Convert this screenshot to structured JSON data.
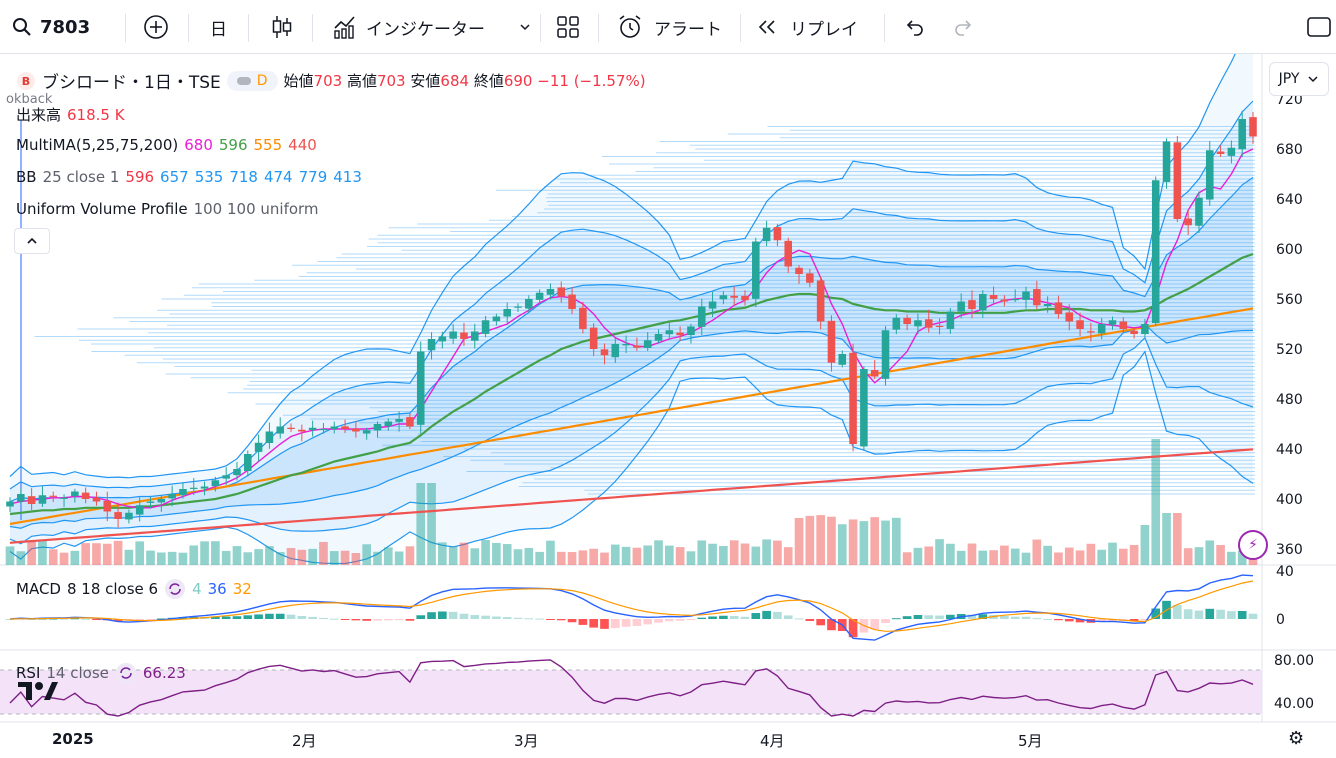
{
  "toolbar": {
    "symbol": "7803",
    "interval": "日",
    "indicators_label": "インジケーター",
    "alert_label": "アラート",
    "replay_label": "リプレイ"
  },
  "header": {
    "title": "ブシロード・1日・TSE",
    "badge": "D",
    "open_label": "始値",
    "open": "703",
    "high_label": "高値",
    "high": "703",
    "low_label": "安値",
    "low": "684",
    "close_label": "終値",
    "close": "690",
    "change": "−11 (−1.57%)",
    "currency": "JPY",
    "overlay_text": "okback"
  },
  "legends": {
    "volume_name": "出来高",
    "volume_value": "618.5 K",
    "ma_name": "MultiMA",
    "ma_params": "(5,25,75,200)",
    "ma_values": [
      "680",
      "596",
      "555",
      "440"
    ],
    "bb_name": "BB",
    "bb_params": "25 close 1",
    "bb_values": [
      "596",
      "657",
      "535",
      "718",
      "474",
      "779",
      "413"
    ],
    "vp_name": "Uniform Volume Profile",
    "vp_params": "100 100 uniform",
    "macd_name": "MACD",
    "macd_params": "8 18 close 6",
    "macd_values": [
      "4",
      "36",
      "32"
    ],
    "rsi_name": "RSI",
    "rsi_params": "14 close",
    "rsi_value": "66.23"
  },
  "axes": {
    "price_ticks": [
      "720",
      "680",
      "640",
      "600",
      "560",
      "520",
      "480",
      "440",
      "400",
      "360"
    ],
    "macd_ticks": [
      "40",
      "0"
    ],
    "rsi_ticks": [
      "80.00",
      "40.00"
    ],
    "time_labels": [
      "2025",
      "2月",
      "3月",
      "4月",
      "5月"
    ]
  },
  "colors": {
    "up": "#26a69a",
    "down": "#ef5350",
    "ma5": "#e91ed6",
    "ma25": "#43a047",
    "ma75": "#fb8c00",
    "ma200": "#ef5350",
    "bb": "#2196f3",
    "macd": "#2962ff",
    "signal": "#ff9800",
    "rsi": "#7e1f86"
  },
  "chart_data": {
    "type": "candlestick",
    "closes": [
      398,
      404,
      396,
      403,
      402,
      401,
      406,
      400,
      398,
      390,
      384,
      389,
      395,
      398,
      400,
      404,
      408,
      409,
      410,
      415,
      419,
      424,
      436,
      445,
      454,
      458,
      456,
      454,
      457,
      456,
      458,
      456,
      454,
      455,
      460,
      462,
      464,
      458,
      518,
      528,
      530,
      534,
      528,
      534,
      543,
      546,
      552,
      554,
      560,
      565,
      568,
      562,
      552,
      536,
      520,
      515,
      524,
      524,
      521,
      527,
      532,
      535,
      531,
      538,
      554,
      558,
      563,
      561,
      559,
      606,
      617,
      607,
      586,
      580,
      573,
      542,
      509,
      516,
      444,
      504,
      498,
      535,
      545,
      540,
      543,
      537,
      538,
      550,
      558,
      552,
      564,
      560,
      558,
      560,
      566,
      555,
      556,
      548,
      542,
      536,
      534,
      540,
      543,
      536,
      532,
      540,
      655,
      686,
      624,
      619,
      641,
      679,
      676,
      681,
      704,
      690
    ],
    "ma5": [
      396,
      398,
      399,
      400,
      401,
      401,
      402,
      402,
      401,
      399,
      396,
      394,
      393,
      393,
      395,
      399,
      402,
      405,
      407,
      410,
      413,
      417,
      423,
      430,
      437,
      444,
      450,
      453,
      455,
      456,
      456,
      456,
      456,
      456,
      457,
      458,
      460,
      460,
      472,
      486,
      500,
      514,
      528,
      531,
      534,
      537,
      540,
      546,
      551,
      557,
      561,
      562,
      561,
      556,
      548,
      537,
      529,
      525,
      522,
      522,
      525,
      528,
      530,
      533,
      538,
      543,
      549,
      555,
      559,
      569,
      581,
      590,
      595,
      599,
      596,
      577,
      556,
      540,
      518,
      503,
      493,
      500,
      509,
      518,
      534,
      539,
      541,
      543,
      547,
      549,
      552,
      556,
      559,
      560,
      561,
      559,
      557,
      555,
      553,
      547,
      543,
      540,
      539,
      538,
      537,
      538,
      561,
      589,
      607,
      631,
      645,
      650,
      648,
      660,
      676,
      680
    ],
    "ma25": [
      388,
      389,
      390,
      391,
      391,
      392,
      392,
      393,
      393,
      393,
      393,
      393,
      394,
      394,
      395,
      396,
      397,
      398,
      399,
      400,
      402,
      404,
      407,
      410,
      413,
      416,
      419,
      421,
      424,
      427,
      430,
      432,
      434,
      436,
      438,
      441,
      443,
      445,
      451,
      458,
      464,
      470,
      475,
      480,
      486,
      491,
      496,
      501,
      506,
      511,
      515,
      520,
      523,
      526,
      528,
      530,
      532,
      534,
      536,
      538,
      540,
      542,
      543,
      545,
      547,
      549,
      551,
      552,
      553,
      556,
      559,
      561,
      563,
      564,
      564,
      563,
      561,
      560,
      556,
      554,
      552,
      551,
      551,
      550,
      550,
      550,
      549,
      549,
      549,
      549,
      549,
      549,
      549,
      550,
      551,
      551,
      552,
      552,
      552,
      552,
      551,
      551,
      551,
      550,
      550,
      551,
      555,
      560,
      564,
      568,
      573,
      578,
      583,
      588,
      593,
      596
    ]
  }
}
